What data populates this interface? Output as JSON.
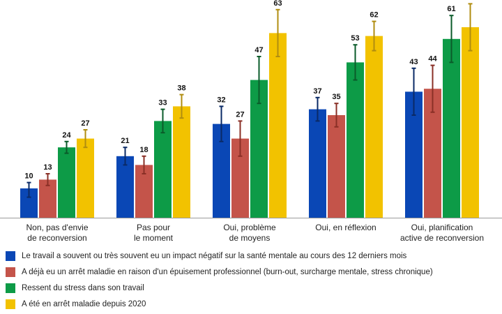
{
  "chart_data": {
    "type": "bar",
    "categories": [
      [
        "Non, pas d'envie",
        "de reconversion"
      ],
      [
        "Pas pour",
        "le moment"
      ],
      [
        "Oui, problème",
        "de moyens"
      ],
      [
        "Oui, en réflexion"
      ],
      [
        "Oui, planification",
        "active de reconversion"
      ]
    ],
    "series": [
      {
        "name": "Le travail a souvent ou très souvent eu un impact négatif sur la santé mentale au cours des 12 derniers mois",
        "color": "#0a47b5",
        "err": "#0a2a66",
        "values": [
          10,
          21,
          32,
          37,
          43
        ],
        "lower": [
          7,
          18,
          26,
          33,
          35
        ],
        "upper": [
          12,
          24,
          38,
          41,
          51
        ]
      },
      {
        "name": "A déjà eu un arrêt maladie en raison d'un épuisement professionnel (burn-out, surcharge mentale, stress chronique)",
        "color": "#c4544a",
        "err": "#8a2f26",
        "values": [
          13,
          18,
          27,
          35,
          44
        ],
        "lower": [
          11,
          15,
          21,
          31,
          36
        ],
        "upper": [
          15,
          21,
          33,
          39,
          52
        ]
      },
      {
        "name": "Ressent du stress dans son travail",
        "color": "#0d9b47",
        "err": "#0a5b2a",
        "values": [
          24,
          33,
          47,
          53,
          61
        ],
        "lower": [
          22,
          29,
          39,
          47,
          53
        ],
        "upper": [
          26,
          37,
          55,
          59,
          69
        ]
      },
      {
        "name": "A été en arrêt maladie depuis 2020",
        "color": "#f2c200",
        "err": "#b08d10",
        "values": [
          27,
          38,
          63,
          62,
          65
        ],
        "lower": [
          24,
          34,
          55,
          57,
          57
        ],
        "upper": [
          30,
          42,
          71,
          67,
          73
        ]
      }
    ],
    "ylim": [
      0,
      70
    ]
  }
}
